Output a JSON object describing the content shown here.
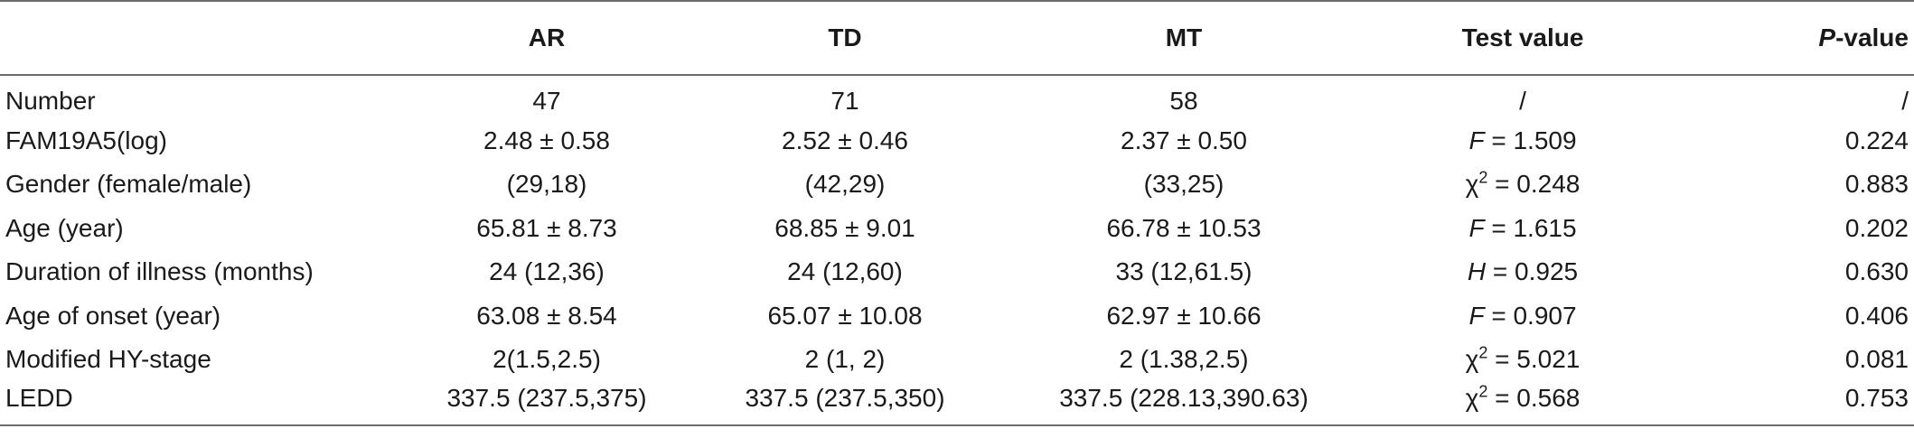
{
  "columns": [
    "",
    "AR",
    "TD",
    "MT",
    "Test value",
    "P-value"
  ],
  "header_pvalue": {
    "italic": "P",
    "rest": "-value"
  },
  "rows": [
    {
      "label": "Number",
      "ar": "47",
      "td": "71",
      "mt": "58",
      "test": {
        "pre": "",
        "sym": "",
        "sup": "",
        "val": "/"
      },
      "p": "/"
    },
    {
      "label": "FAM19A5(log)",
      "ar": "2.48 ± 0.58",
      "td": "2.52 ± 0.46",
      "mt": "2.37 ± 0.50",
      "test": {
        "pre": "",
        "sym": "F",
        "sup": "",
        "val": " = 1.509"
      },
      "p": "0.224"
    },
    {
      "label": "Gender (female/male)",
      "ar": "(29,18)",
      "td": "(42,29)",
      "mt": "(33,25)",
      "test": {
        "pre": "χ",
        "sym": "",
        "sup": "2",
        "val": " = 0.248"
      },
      "p": "0.883"
    },
    {
      "label": "Age (year)",
      "ar": "65.81 ± 8.73",
      "td": "68.85 ± 9.01",
      "mt": "66.78 ± 10.53",
      "test": {
        "pre": "",
        "sym": "F",
        "sup": "",
        "val": " = 1.615"
      },
      "p": "0.202"
    },
    {
      "label": "Duration of illness (months)",
      "ar": "24 (12,36)",
      "td": "24 (12,60)",
      "mt": "33 (12,61.5)",
      "test": {
        "pre": "",
        "sym": "H",
        "sup": "",
        "val": " = 0.925"
      },
      "p": "0.630"
    },
    {
      "label": "Age of onset (year)",
      "ar": "63.08 ± 8.54",
      "td": "65.07 ± 10.08",
      "mt": "62.97 ± 10.66",
      "test": {
        "pre": "",
        "sym": "F",
        "sup": "",
        "val": " = 0.907"
      },
      "p": "0.406"
    },
    {
      "label": "Modified HY-stage",
      "ar": "2(1.5,2.5)",
      "td": "2 (1, 2)",
      "mt": "2 (1.38,2.5)",
      "test": {
        "pre": "χ",
        "sym": "",
        "sup": "2",
        "val": " = 5.021"
      },
      "p": "0.081"
    },
    {
      "label": "LEDD",
      "ar": "337.5 (237.5,375)",
      "td": "337.5 (237.5,350)",
      "mt": "337.5 (228.13,390.63)",
      "test": {
        "pre": "χ",
        "sym": "",
        "sup": "2",
        "val": " = 0.568"
      },
      "p": "0.753"
    }
  ]
}
